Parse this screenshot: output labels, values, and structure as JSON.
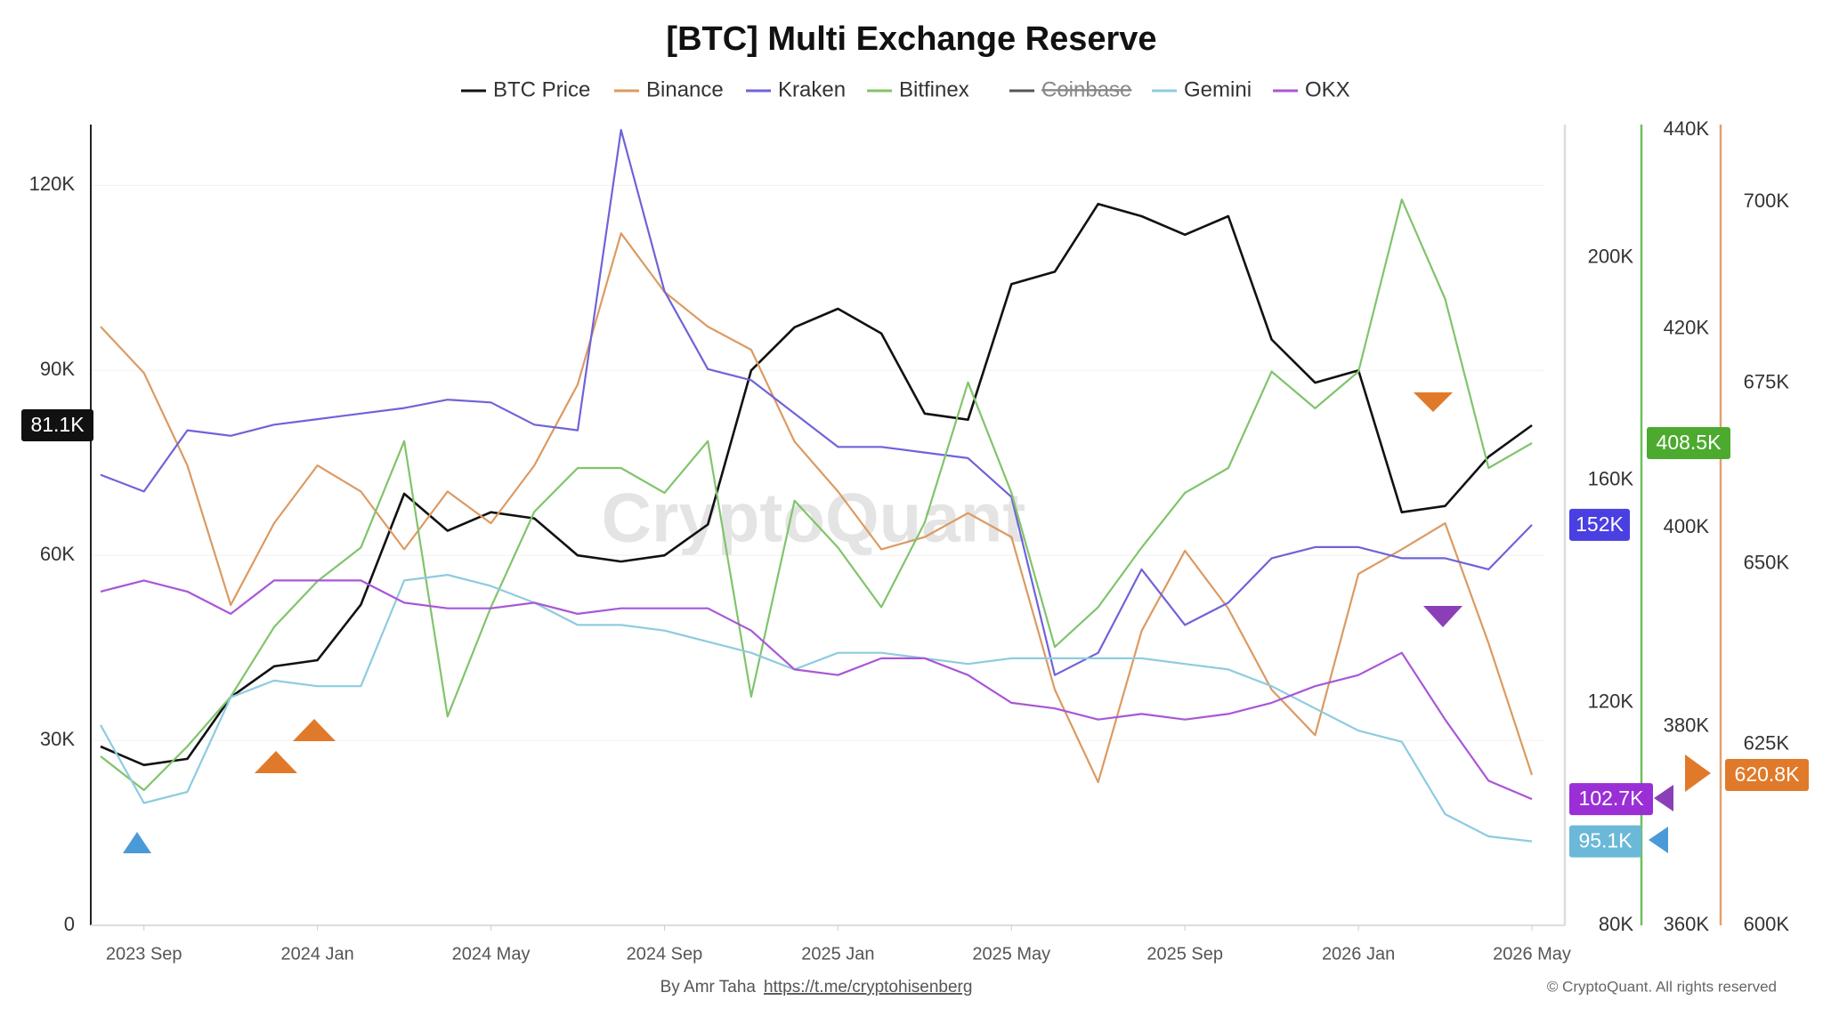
{
  "chart_data": {
    "type": "line",
    "title": "[BTC] Multi Exchange Reserve",
    "watermark": "CryptoQuant",
    "credit": "By Amr Taha",
    "link": "https://t.me/cryptohisenberg",
    "copyright": "© CryptoQuant. All rights reserved",
    "grid": true,
    "legend": "top",
    "x": [
      "2023-08",
      "2023-09",
      "2023-10",
      "2023-11",
      "2023-12",
      "2024-01",
      "2024-02",
      "2024-03",
      "2024-04",
      "2024-05",
      "2024-06",
      "2024-07",
      "2024-08",
      "2024-09",
      "2024-10",
      "2024-11",
      "2024-12",
      "2025-01",
      "2025-02",
      "2025-03",
      "2025-04",
      "2025-05",
      "2025-06",
      "2025-07",
      "2025-08",
      "2025-09",
      "2025-10",
      "2025-11",
      "2025-12",
      "2026-01",
      "2026-02",
      "2026-03",
      "2026-04",
      "2026-05"
    ],
    "xlim": [
      "2023-08",
      "2026-05"
    ],
    "xticks": [
      {
        "value": "2023-09",
        "label": "2023 Sep"
      },
      {
        "value": "2024-01",
        "label": "2024 Jan"
      },
      {
        "value": "2024-05",
        "label": "2024 May"
      },
      {
        "value": "2024-09",
        "label": "2024 Sep"
      },
      {
        "value": "2025-01",
        "label": "2025 Jan"
      },
      {
        "value": "2025-05",
        "label": "2025 May"
      },
      {
        "value": "2025-09",
        "label": "2025 Sep"
      },
      {
        "value": "2026-01",
        "label": "2026 Jan"
      },
      {
        "value": "2026-05",
        "label": "2026 May"
      }
    ],
    "ylim": [
      0,
      129
    ],
    "yticks": [
      0,
      {
        "value": 30,
        "label": "30K"
      },
      {
        "value": 60,
        "label": "60K"
      },
      {
        "value": 90,
        "label": "90K"
      },
      {
        "value": 120,
        "label": "120K"
      }
    ],
    "y2lim": [
      80,
      223
    ],
    "y2ticks": [
      {
        "value": 80,
        "label": "80K"
      },
      {
        "value": 120,
        "label": "120K"
      },
      {
        "value": 160,
        "label": "160K"
      },
      {
        "value": 200,
        "label": "200K"
      }
    ],
    "y3lim": [
      360,
      440
    ],
    "y3ticks": [
      {
        "value": 360,
        "label": "360K"
      },
      {
        "value": 380,
        "label": "380K"
      },
      {
        "value": 400,
        "label": "400K"
      },
      {
        "value": 420,
        "label": "420K"
      },
      {
        "value": 440,
        "label": "440K"
      }
    ],
    "y4lim": [
      600,
      710
    ],
    "y4ticks": [
      {
        "value": 600,
        "label": "600K"
      },
      {
        "value": 625,
        "label": "625K"
      },
      {
        "value": 650,
        "label": "650K"
      },
      {
        "value": 675,
        "label": "675K"
      },
      {
        "value": 700,
        "label": "700K"
      }
    ],
    "series": [
      {
        "name": "BTC Price",
        "color": "#111111",
        "axis": "y",
        "badge_color": "#111111",
        "last_value_label": "81.1K",
        "values": [
          29,
          26,
          27,
          37,
          42,
          43,
          52,
          70,
          64,
          67,
          66,
          60,
          59,
          60,
          65,
          90,
          97,
          100,
          96,
          83,
          82,
          104,
          106,
          117,
          115,
          112,
          115,
          95,
          88,
          90,
          67,
          68,
          76,
          81.1
        ]
      },
      {
        "name": "Binance",
        "color": "#dc9a62",
        "axis": "y4",
        "badge_color": "#e07a2a",
        "last_value_label": "620.8K",
        "values": [
          682.8,
          676.4,
          663.6,
          644.3,
          655.6,
          663.6,
          660,
          652,
          660,
          655.6,
          663.6,
          674.8,
          695.7,
          687.6,
          682.8,
          679.6,
          666.9,
          660,
          652,
          653.7,
          657,
          653.7,
          632.6,
          619.8,
          640.7,
          651.8,
          643.8,
          632.6,
          626.3,
          648.6,
          652,
          655.6,
          639,
          620.8
        ]
      },
      {
        "name": "Kraken",
        "color": "#6f63d8",
        "axis": "y2",
        "badge_color": "#4a3fe0",
        "last_value_label": "152K",
        "values": [
          161,
          158,
          169,
          168,
          170,
          171,
          172,
          173,
          174.5,
          174,
          170,
          169,
          223,
          194,
          180,
          178,
          172,
          166,
          166,
          165,
          164,
          157,
          125,
          129,
          144,
          134,
          138,
          146,
          148,
          148,
          146,
          146,
          144,
          152
        ]
      },
      {
        "name": "Bitfinex",
        "color": "#80c46c",
        "axis": "y3",
        "badge_color": "#4caa2f",
        "last_value_label": "408.5K",
        "values": [
          377,
          373.6,
          378,
          383,
          390,
          394.6,
          398,
          408.7,
          381,
          392,
          401.6,
          406,
          406,
          403.5,
          408.7,
          383,
          402.7,
          398,
          392,
          400.5,
          414.6,
          403.5,
          388,
          392,
          398,
          403.5,
          406,
          415.7,
          412,
          415.7,
          433,
          423,
          406,
          408.5
        ]
      },
      {
        "name": "Coinbase",
        "color": "#555555",
        "visible": false
      },
      {
        "name": "Gemini",
        "color": "#8ecbe0",
        "axis": "y2",
        "badge_color": "#6bb8d8",
        "last_value_label": "95.1K",
        "values": [
          116,
          102,
          104,
          121,
          124,
          123,
          123,
          142,
          143,
          141,
          138,
          134,
          134,
          133,
          131,
          129,
          126,
          129,
          129,
          128,
          127,
          128,
          128,
          128,
          128,
          127,
          126,
          123,
          119,
          115,
          113,
          100,
          96,
          95.1
        ]
      },
      {
        "name": "OKX",
        "color": "#a956d6",
        "axis": "y2",
        "badge_color": "#9b2fd6",
        "last_value_label": "102.7K",
        "values": [
          140,
          142,
          140,
          136,
          142,
          142,
          142,
          138,
          137,
          137,
          138,
          136,
          137,
          137,
          137,
          133,
          126,
          125,
          128,
          128,
          125,
          120,
          119,
          117,
          118,
          117,
          118,
          120,
          123,
          125,
          129,
          117,
          106,
          102.7
        ]
      }
    ]
  }
}
